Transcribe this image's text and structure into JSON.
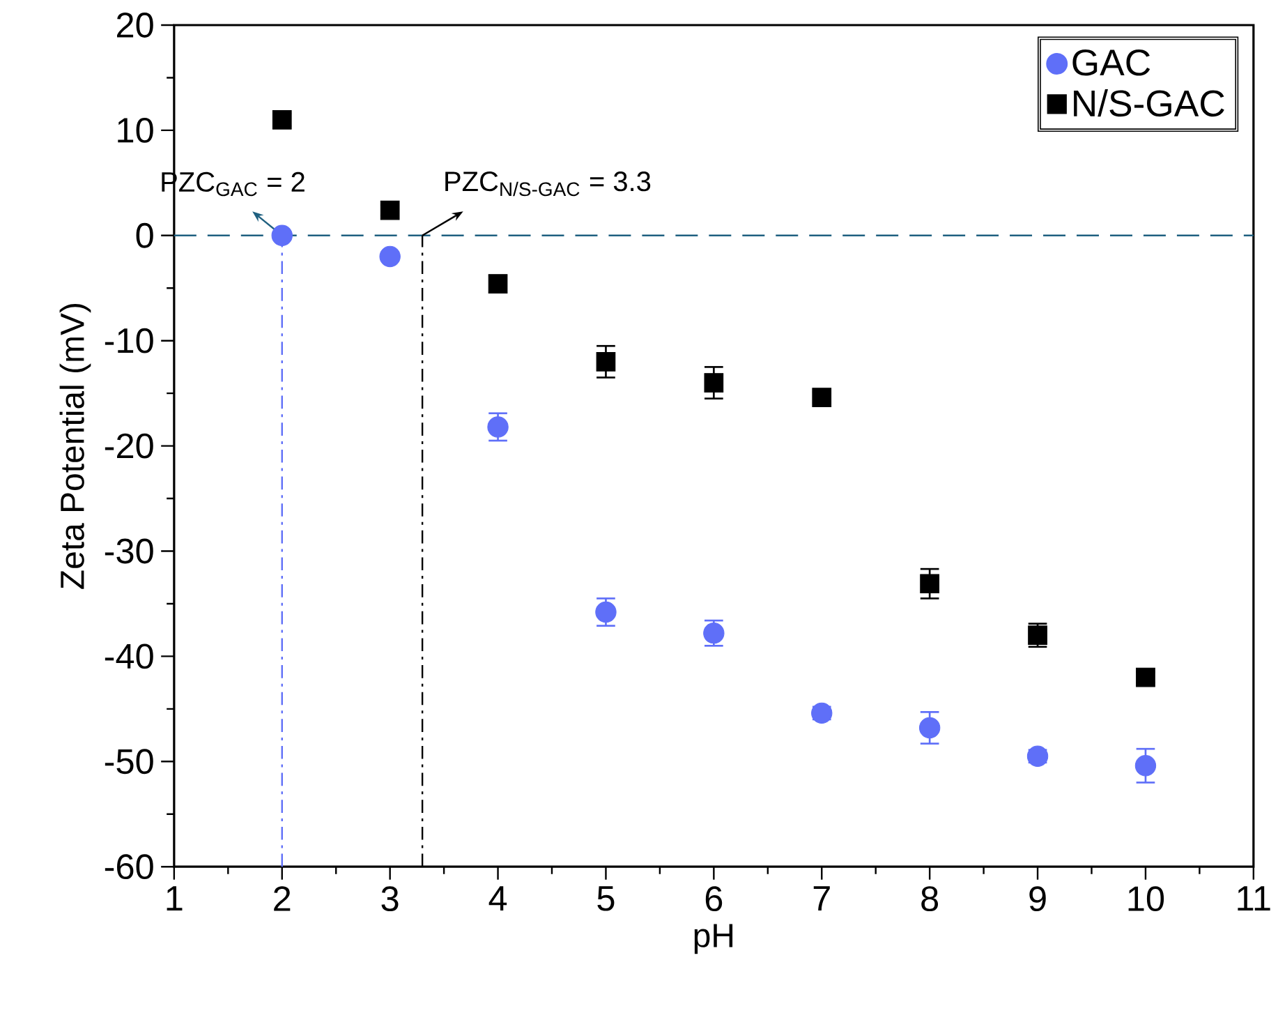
{
  "chart_data": {
    "type": "scatter",
    "xlabel": "pH",
    "ylabel": "Zeta Potential (mV)",
    "x": [
      2,
      3,
      4,
      5,
      6,
      7,
      8,
      9,
      10
    ],
    "series": [
      {
        "name": "GAC",
        "color": "#5f6ff8",
        "marker": "circle",
        "values": [
          0,
          -2,
          -18.2,
          -35.8,
          -37.8,
          -45.4,
          -46.8,
          -49.5,
          -50.4
        ],
        "errors": [
          null,
          null,
          1.3,
          1.3,
          1.2,
          0.6,
          1.5,
          0.6,
          1.6
        ]
      },
      {
        "name": "N/S-GAC",
        "color": "#000000",
        "marker": "square",
        "values": [
          11,
          2.4,
          -4.6,
          -12,
          -14,
          -15.4,
          -33.1,
          -38,
          -42
        ],
        "errors": [
          0.6,
          0.5,
          0.8,
          1.5,
          1.5,
          0.5,
          1.4,
          1.1,
          0.5
        ]
      }
    ],
    "xlim": [
      1,
      11
    ],
    "xticks": [
      1,
      2,
      3,
      4,
      5,
      6,
      7,
      8,
      9,
      10,
      11
    ],
    "ylim": [
      -60,
      20
    ],
    "yticks": [
      -60,
      -50,
      -40,
      -30,
      -20,
      -10,
      0,
      10,
      20
    ],
    "ref_lines": [
      {
        "axis": "y",
        "value": 0,
        "color": "#1f6080",
        "line_style": "dashed"
      },
      {
        "axis": "x",
        "value": 2,
        "color": "#5f6ff8",
        "line_style": "dashdotted"
      },
      {
        "axis": "x",
        "value": 3.3,
        "color": "#000000",
        "line_style": "dashdotted"
      }
    ],
    "annotations": [
      {
        "text": "PZC$_{GAC}$ = 2",
        "x": 2,
        "y": 0
      },
      {
        "text": "PZC$_{N/S-GAC}$ = 3.3",
        "x": 3.3,
        "y": 0
      }
    ],
    "legend": "top right",
    "grid": false
  }
}
